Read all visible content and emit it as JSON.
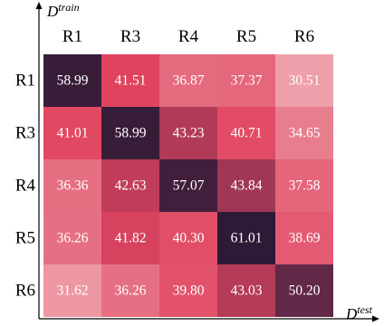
{
  "chart_data": {
    "type": "heatmap",
    "x_categories": [
      "R1",
      "R3",
      "R4",
      "R5",
      "R6"
    ],
    "y_categories": [
      "R1",
      "R3",
      "R4",
      "R5",
      "R6"
    ],
    "values": [
      [
        58.99,
        41.51,
        36.87,
        37.37,
        30.51
      ],
      [
        41.01,
        58.99,
        43.23,
        40.71,
        34.65
      ],
      [
        36.36,
        42.63,
        57.07,
        43.84,
        37.58
      ],
      [
        36.26,
        41.82,
        40.3,
        61.01,
        38.69
      ],
      [
        31.62,
        36.26,
        39.8,
        43.03,
        50.2
      ]
    ],
    "value_labels": [
      [
        "58.99",
        "41.51",
        "36.87",
        "37.37",
        "30.51"
      ],
      [
        "41.01",
        "58.99",
        "43.23",
        "40.71",
        "34.65"
      ],
      [
        "36.36",
        "42.63",
        "57.07",
        "43.84",
        "37.58"
      ],
      [
        "36.26",
        "41.82",
        "40.30",
        "61.01",
        "38.69"
      ],
      [
        "31.62",
        "36.26",
        "39.80",
        "43.03",
        "50.20"
      ]
    ],
    "xlabel": "D",
    "xlabel_superscript": "test",
    "ylabel": "D",
    "ylabel_superscript": "train",
    "x_ticks_position": "top",
    "grid": false,
    "legend": "none",
    "colors": {
      "light": "#eda0aa",
      "red": "#e0445f",
      "mid": "#7a2f4f",
      "dark": "#2e1a36"
    }
  }
}
